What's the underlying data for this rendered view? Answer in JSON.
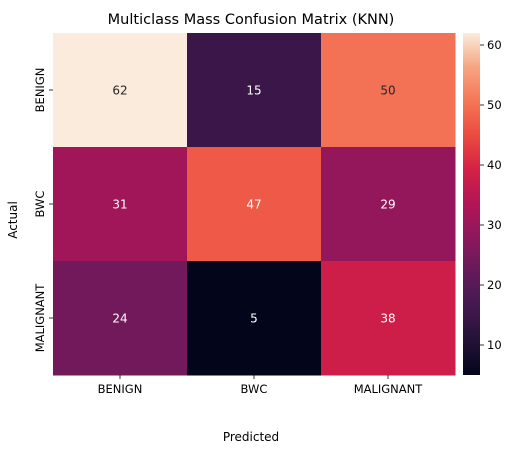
{
  "chart_data": {
    "type": "heatmap",
    "title": "Multiclass Mass Confusion Matrix (KNN)",
    "xlabel": "Predicted",
    "ylabel": "Actual",
    "x_categories": [
      "BENIGN",
      "BWC",
      "MALIGNANT"
    ],
    "y_categories": [
      "BENIGN",
      "BWC",
      "MALIGNANT"
    ],
    "values": [
      [
        62,
        15,
        50
      ],
      [
        31,
        47,
        29
      ],
      [
        24,
        5,
        38
      ]
    ],
    "colorbar": {
      "range": [
        5,
        62
      ],
      "ticks": [
        10,
        20,
        30,
        40,
        50,
        60
      ],
      "colormap": "rocket"
    },
    "grid": false
  }
}
